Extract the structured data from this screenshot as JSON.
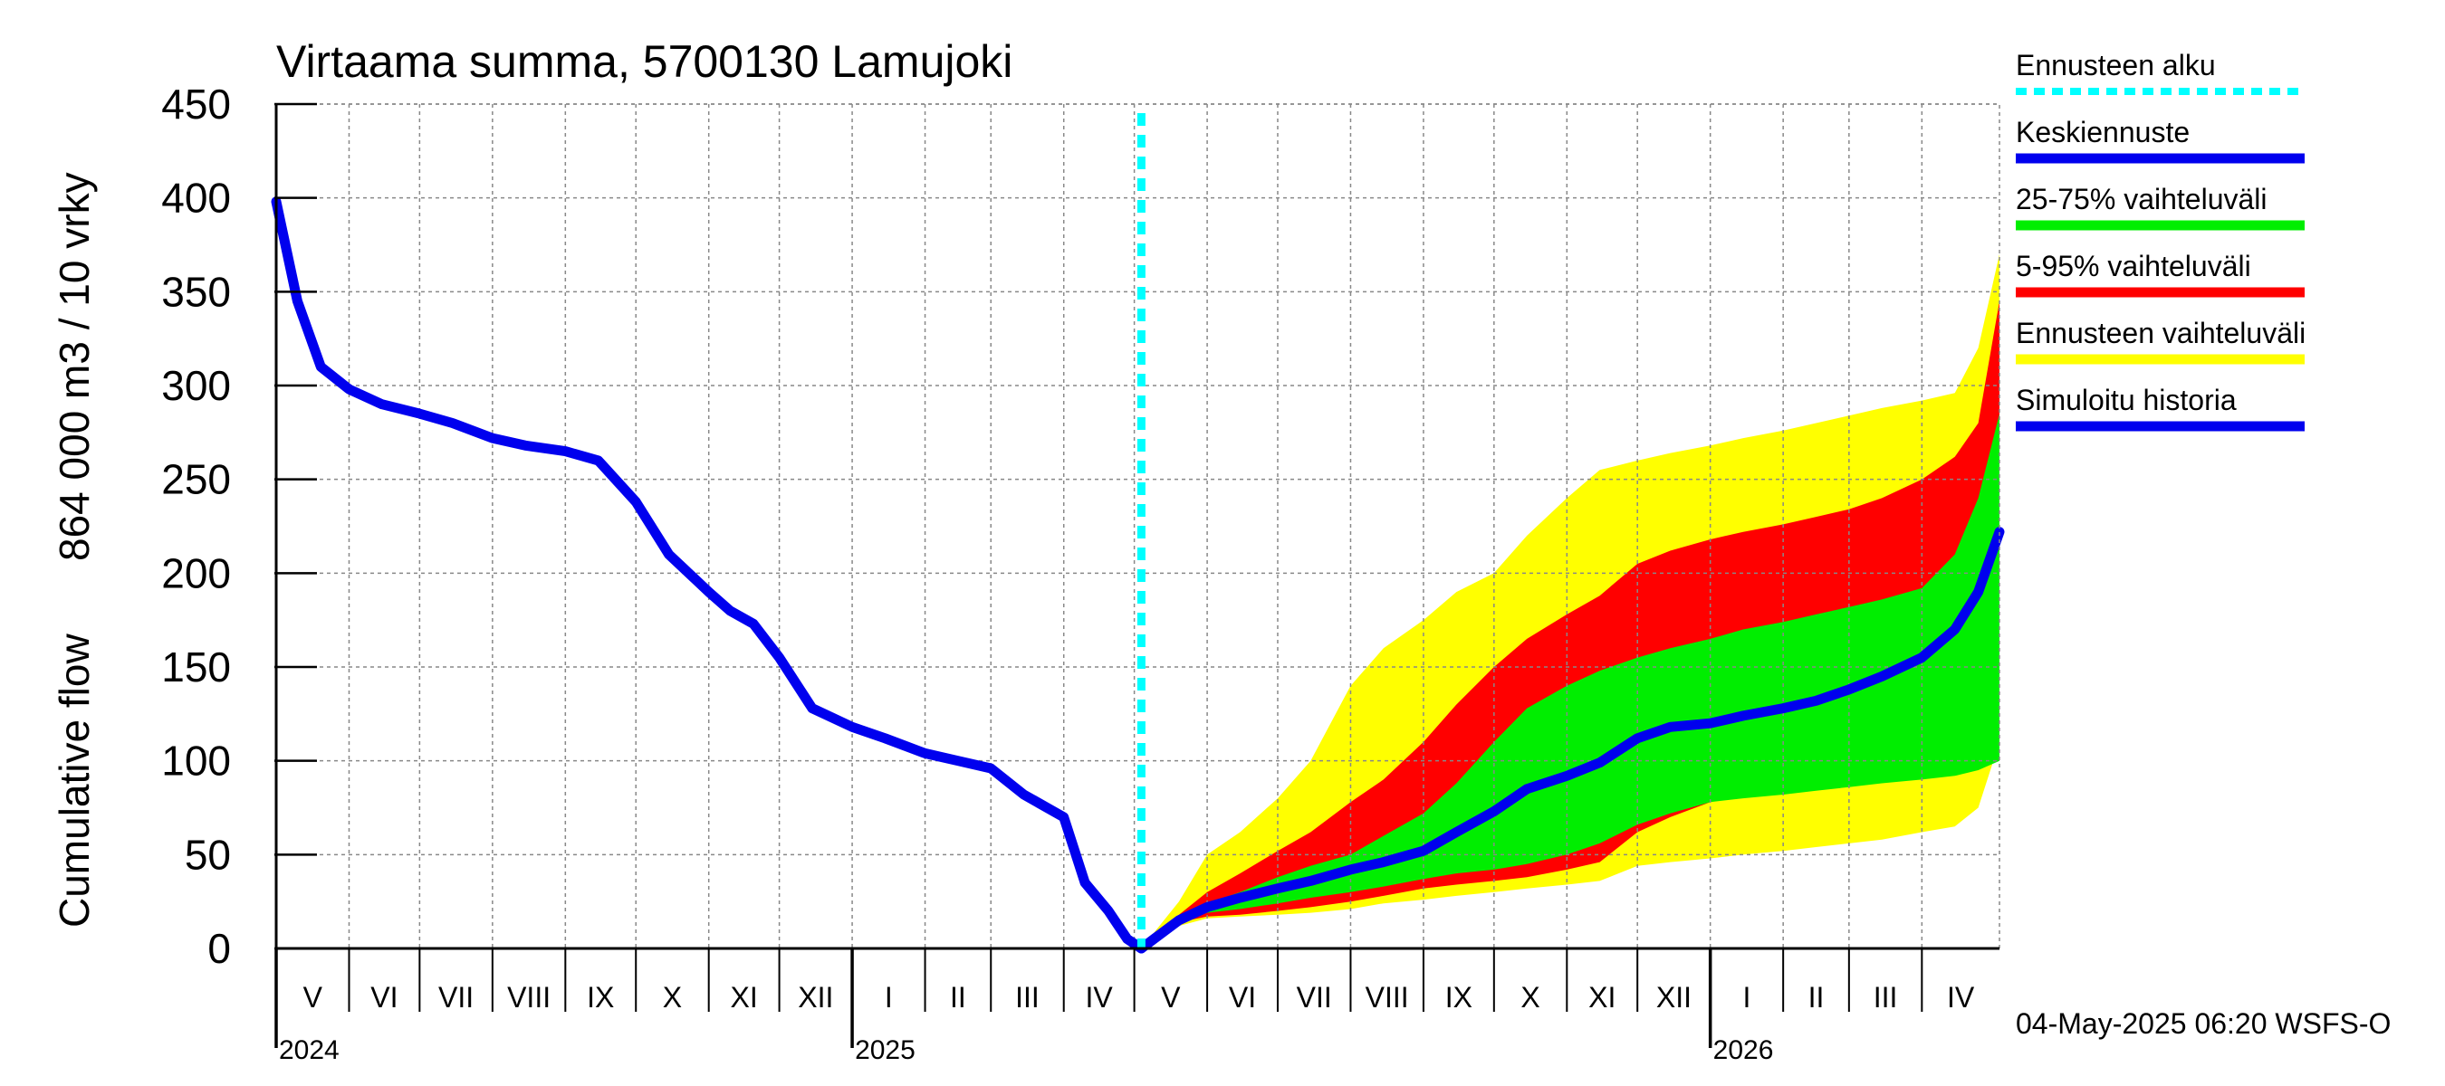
{
  "chart_data": {
    "type": "area",
    "title": "Virtaama summa, 5700130 Lamujoki",
    "ylabel_line1": "Cumulative flow",
    "ylabel_line2": "864 000 m3 / 10 vrky",
    "ylim": [
      0,
      450
    ],
    "yticks": [
      0,
      50,
      100,
      150,
      200,
      250,
      300,
      350,
      400,
      450
    ],
    "xlim": [
      "2024-05-01",
      "2026-05-04"
    ],
    "grid": true,
    "legend_position": "right",
    "forecast_start": "2025-05-04",
    "months": [
      {
        "label": "V",
        "start": "2024-05-01"
      },
      {
        "label": "VI",
        "start": "2024-06-01"
      },
      {
        "label": "VII",
        "start": "2024-07-01"
      },
      {
        "label": "VIII",
        "start": "2024-08-01"
      },
      {
        "label": "IX",
        "start": "2024-09-01"
      },
      {
        "label": "X",
        "start": "2024-10-01"
      },
      {
        "label": "XI",
        "start": "2024-11-01"
      },
      {
        "label": "XII",
        "start": "2024-12-01"
      },
      {
        "label": "I",
        "start": "2025-01-01"
      },
      {
        "label": "II",
        "start": "2025-02-01"
      },
      {
        "label": "III",
        "start": "2025-03-01"
      },
      {
        "label": "IV",
        "start": "2025-04-01"
      },
      {
        "label": "V",
        "start": "2025-05-01"
      },
      {
        "label": "VI",
        "start": "2025-06-01"
      },
      {
        "label": "VII",
        "start": "2025-07-01"
      },
      {
        "label": "VIII",
        "start": "2025-08-01"
      },
      {
        "label": "IX",
        "start": "2025-09-01"
      },
      {
        "label": "X",
        "start": "2025-10-01"
      },
      {
        "label": "XI",
        "start": "2025-11-01"
      },
      {
        "label": "XII",
        "start": "2025-12-01"
      },
      {
        "label": "I",
        "start": "2026-01-01"
      },
      {
        "label": "II",
        "start": "2026-02-01"
      },
      {
        "label": "III",
        "start": "2026-03-01"
      },
      {
        "label": "IV",
        "start": "2026-04-01"
      }
    ],
    "years": [
      {
        "label": "2024",
        "date": "2024-05-01"
      },
      {
        "label": "2025",
        "date": "2025-01-01"
      },
      {
        "label": "2026",
        "date": "2026-01-01"
      }
    ],
    "series": [
      {
        "name": "Ennusteen vaihteluväli",
        "color": "#ffff00",
        "kind": "band",
        "x": [
          "2025-05-04",
          "2025-05-20",
          "2025-06-01",
          "2025-06-15",
          "2025-07-01",
          "2025-07-15",
          "2025-08-01",
          "2025-08-15",
          "2025-09-01",
          "2025-09-15",
          "2025-10-01",
          "2025-10-15",
          "2025-11-01",
          "2025-11-15",
          "2025-12-01",
          "2025-12-15",
          "2026-01-01",
          "2026-01-15",
          "2026-02-01",
          "2026-02-15",
          "2026-03-01",
          "2026-03-15",
          "2026-04-01",
          "2026-04-15",
          "2026-04-25",
          "2026-05-04"
        ],
        "upper": [
          0,
          25,
          50,
          62,
          80,
          100,
          140,
          160,
          175,
          190,
          200,
          220,
          240,
          255,
          260,
          264,
          268,
          272,
          276,
          280,
          284,
          288,
          292,
          296,
          320,
          370
        ],
        "lower": [
          0,
          12,
          16,
          17,
          18,
          19,
          21,
          24,
          26,
          28,
          30,
          32,
          34,
          36,
          44,
          46,
          48,
          50,
          52,
          54,
          56,
          58,
          62,
          65,
          75,
          110
        ]
      },
      {
        "name": "5-95% vaihteluväli",
        "color": "#ff0000",
        "kind": "band",
        "x": [
          "2025-05-04",
          "2025-05-20",
          "2025-06-01",
          "2025-06-15",
          "2025-07-01",
          "2025-07-15",
          "2025-08-01",
          "2025-08-15",
          "2025-09-01",
          "2025-09-15",
          "2025-10-01",
          "2025-10-15",
          "2025-11-01",
          "2025-11-15",
          "2025-12-01",
          "2025-12-15",
          "2026-01-01",
          "2026-01-15",
          "2026-02-01",
          "2026-02-15",
          "2026-03-01",
          "2026-03-15",
          "2026-04-01",
          "2026-04-15",
          "2026-04-25",
          "2026-05-04"
        ],
        "upper": [
          0,
          18,
          30,
          40,
          52,
          62,
          78,
          90,
          110,
          130,
          150,
          165,
          178,
          188,
          205,
          212,
          218,
          222,
          226,
          230,
          234,
          240,
          250,
          262,
          280,
          345
        ],
        "lower": [
          0,
          14,
          17,
          18,
          20,
          22,
          25,
          28,
          32,
          34,
          36,
          38,
          42,
          46,
          62,
          70,
          78,
          82,
          86,
          90,
          94,
          98,
          104,
          110,
          120,
          165
        ]
      },
      {
        "name": "25-75% vaihteluväli",
        "color": "#00ee00",
        "kind": "band",
        "x": [
          "2025-05-04",
          "2025-05-20",
          "2025-06-01",
          "2025-06-15",
          "2025-07-01",
          "2025-07-15",
          "2025-08-01",
          "2025-08-15",
          "2025-09-01",
          "2025-09-15",
          "2025-10-01",
          "2025-10-15",
          "2025-11-01",
          "2025-11-15",
          "2025-12-01",
          "2025-12-15",
          "2026-01-01",
          "2026-01-15",
          "2026-02-01",
          "2026-02-15",
          "2026-03-01",
          "2026-03-15",
          "2026-04-01",
          "2026-04-15",
          "2026-04-25",
          "2026-05-04"
        ],
        "upper": [
          0,
          16,
          24,
          30,
          38,
          44,
          50,
          60,
          72,
          88,
          110,
          128,
          140,
          148,
          155,
          160,
          165,
          170,
          174,
          178,
          182,
          186,
          192,
          210,
          240,
          285
        ],
        "lower": [
          0,
          15,
          19,
          21,
          24,
          27,
          30,
          33,
          37,
          40,
          42,
          45,
          50,
          56,
          66,
          72,
          78,
          80,
          82,
          84,
          86,
          88,
          90,
          92,
          95,
          100
        ]
      },
      {
        "name": "Keskiennuste",
        "color": "#0000ee",
        "kind": "line",
        "x": [
          "2025-05-04",
          "2025-05-20",
          "2025-06-01",
          "2025-06-15",
          "2025-07-01",
          "2025-07-15",
          "2025-08-01",
          "2025-08-15",
          "2025-09-01",
          "2025-09-15",
          "2025-10-01",
          "2025-10-15",
          "2025-11-01",
          "2025-11-15",
          "2025-12-01",
          "2025-12-15",
          "2026-01-01",
          "2026-01-15",
          "2026-02-01",
          "2026-02-15",
          "2026-03-01",
          "2026-03-15",
          "2026-04-01",
          "2026-04-15",
          "2026-04-25",
          "2026-05-04"
        ],
        "y": [
          0,
          15,
          22,
          27,
          32,
          36,
          42,
          46,
          52,
          62,
          73,
          85,
          92,
          99,
          112,
          118,
          120,
          124,
          128,
          132,
          138,
          145,
          155,
          170,
          190,
          222
        ]
      },
      {
        "name": "Simuloitu historia",
        "color": "#0000ee",
        "kind": "line",
        "x": [
          "2024-05-01",
          "2024-05-10",
          "2024-05-20",
          "2024-06-01",
          "2024-06-15",
          "2024-07-01",
          "2024-07-15",
          "2024-08-01",
          "2024-08-15",
          "2024-09-01",
          "2024-09-15",
          "2024-10-01",
          "2024-10-15",
          "2024-11-01",
          "2024-11-10",
          "2024-11-20",
          "2024-12-01",
          "2024-12-15",
          "2025-01-01",
          "2025-01-15",
          "2025-02-01",
          "2025-02-15",
          "2025-03-01",
          "2025-03-15",
          "2025-04-01",
          "2025-04-10",
          "2025-04-20",
          "2025-04-28",
          "2025-05-04"
        ],
        "y": [
          398,
          345,
          310,
          298,
          290,
          285,
          280,
          272,
          268,
          265,
          260,
          238,
          210,
          190,
          180,
          173,
          155,
          128,
          118,
          112,
          104,
          100,
          96,
          82,
          70,
          35,
          20,
          5,
          0
        ]
      }
    ],
    "legend": [
      {
        "label": "Ennusteen alku",
        "color": "#00ffff",
        "style": "dashed"
      },
      {
        "label": "Keskiennuste",
        "color": "#0000ee",
        "style": "solid"
      },
      {
        "label": "25-75% vaihteluväli",
        "color": "#00ee00",
        "style": "solid"
      },
      {
        "label": "5-95% vaihteluväli",
        "color": "#ff0000",
        "style": "solid"
      },
      {
        "label": "Ennusteen vaihteluväli",
        "color": "#ffff00",
        "style": "solid"
      },
      {
        "label": "Simuloitu historia",
        "color": "#0000ee",
        "style": "solid"
      }
    ]
  },
  "footer": "04-May-2025 06:20 WSFS-O"
}
